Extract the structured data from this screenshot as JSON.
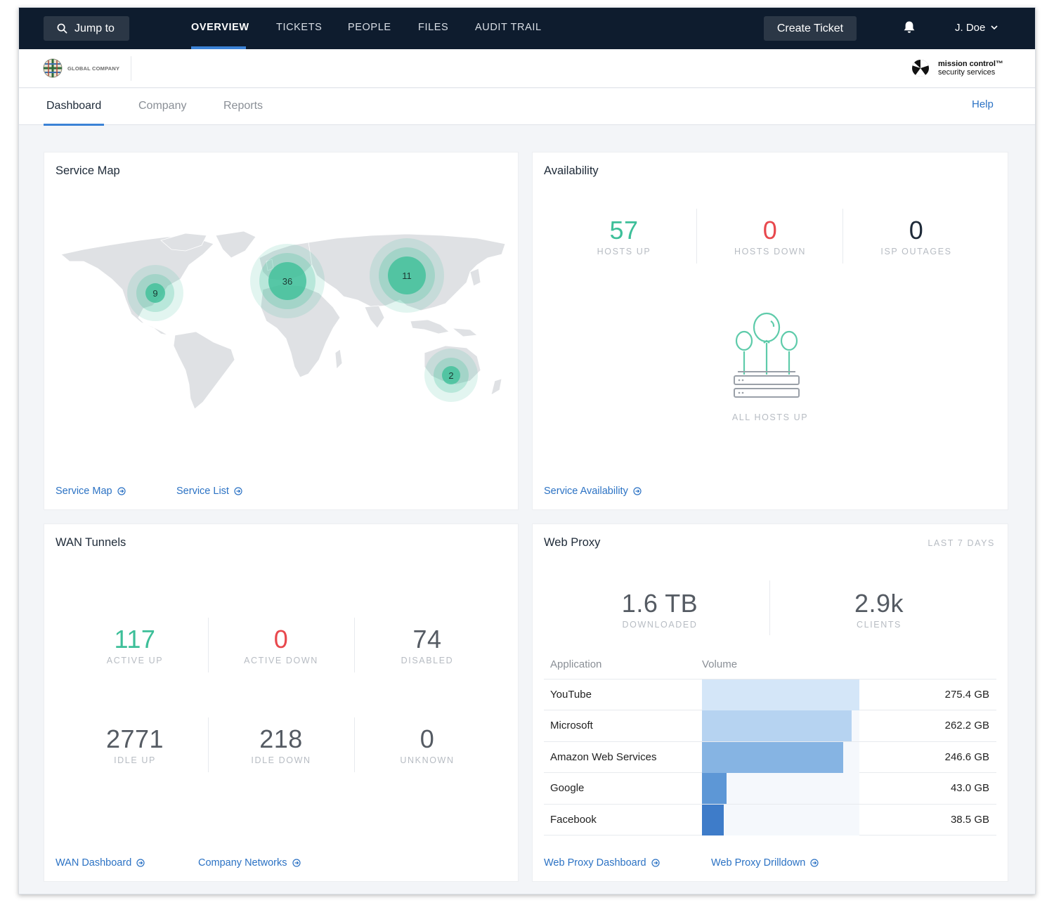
{
  "nav": {
    "jump_label": "Jump to",
    "tabs": [
      {
        "label": "OVERVIEW",
        "active": true
      },
      {
        "label": "TICKETS",
        "active": false
      },
      {
        "label": "PEOPLE",
        "active": false
      },
      {
        "label": "FILES",
        "active": false
      },
      {
        "label": "AUDIT TRAIL",
        "active": false
      }
    ],
    "create_label": "Create Ticket",
    "user_name": "J. Doe"
  },
  "brand": {
    "company_logo_text": "GLOBAL COMPANY",
    "vendor_line1": "mission control™",
    "vendor_line2": "security services"
  },
  "subnav": {
    "tabs": [
      {
        "label": "Dashboard",
        "active": true
      },
      {
        "label": "Company",
        "active": false
      },
      {
        "label": "Reports",
        "active": false
      }
    ],
    "help_label": "Help"
  },
  "service_map": {
    "title": "Service Map",
    "clusters": [
      {
        "label": "9",
        "lon": -100,
        "lat": 40
      },
      {
        "label": "36",
        "lon": 10,
        "lat": 48
      },
      {
        "label": "11",
        "lon": 90,
        "lat": 50
      },
      {
        "label": "2",
        "lon": 140,
        "lat": -25
      }
    ],
    "links": [
      "Service Map",
      "Service List"
    ]
  },
  "availability": {
    "title": "Availability",
    "stats": [
      {
        "value": "57",
        "label": "HOSTS UP",
        "color": "#3dbf99"
      },
      {
        "value": "0",
        "label": "HOSTS DOWN",
        "color": "#e8484d"
      },
      {
        "value": "0",
        "label": "ISP OUTAGES",
        "color": "#1e2a38"
      }
    ],
    "status_label": "ALL HOSTS UP",
    "link": "Service Availability"
  },
  "wan": {
    "title": "WAN Tunnels",
    "stats": [
      {
        "value": "117",
        "label": "ACTIVE UP",
        "color": "#3dbf99"
      },
      {
        "value": "0",
        "label": "ACTIVE DOWN",
        "color": "#e8484d"
      },
      {
        "value": "74",
        "label": "DISABLED",
        "color": "#555b63"
      },
      {
        "value": "2771",
        "label": "IDLE UP",
        "color": "#555b63"
      },
      {
        "value": "218",
        "label": "IDLE DOWN",
        "color": "#555b63"
      },
      {
        "value": "0",
        "label": "UNKNOWN",
        "color": "#555b63"
      }
    ],
    "links": [
      "WAN Dashboard",
      "Company Networks"
    ]
  },
  "web_proxy": {
    "title": "Web Proxy",
    "period": "LAST 7 DAYS",
    "stats": [
      {
        "value": "1.6 TB",
        "label": "DOWNLOADED"
      },
      {
        "value": "2.9k",
        "label": "CLIENTS"
      }
    ],
    "table_headers": [
      "Application",
      "Volume"
    ],
    "rows": [
      {
        "app": "YouTube",
        "volume": "275.4 GB",
        "gb": 275.4,
        "color": "#d4e6f8"
      },
      {
        "app": "Microsoft",
        "volume": "262.2 GB",
        "gb": 262.2,
        "color": "#b6d3f1"
      },
      {
        "app": "Amazon Web Services",
        "volume": "246.6 GB",
        "gb": 246.6,
        "color": "#86b4e3"
      },
      {
        "app": "Google",
        "volume": "43.0 GB",
        "gb": 43.0,
        "color": "#5d97d6"
      },
      {
        "app": "Facebook",
        "volume": "38.5 GB",
        "gb": 38.5,
        "color": "#3e7cc9"
      }
    ],
    "links": [
      "Web Proxy Dashboard",
      "Web Proxy Drilldown"
    ]
  }
}
